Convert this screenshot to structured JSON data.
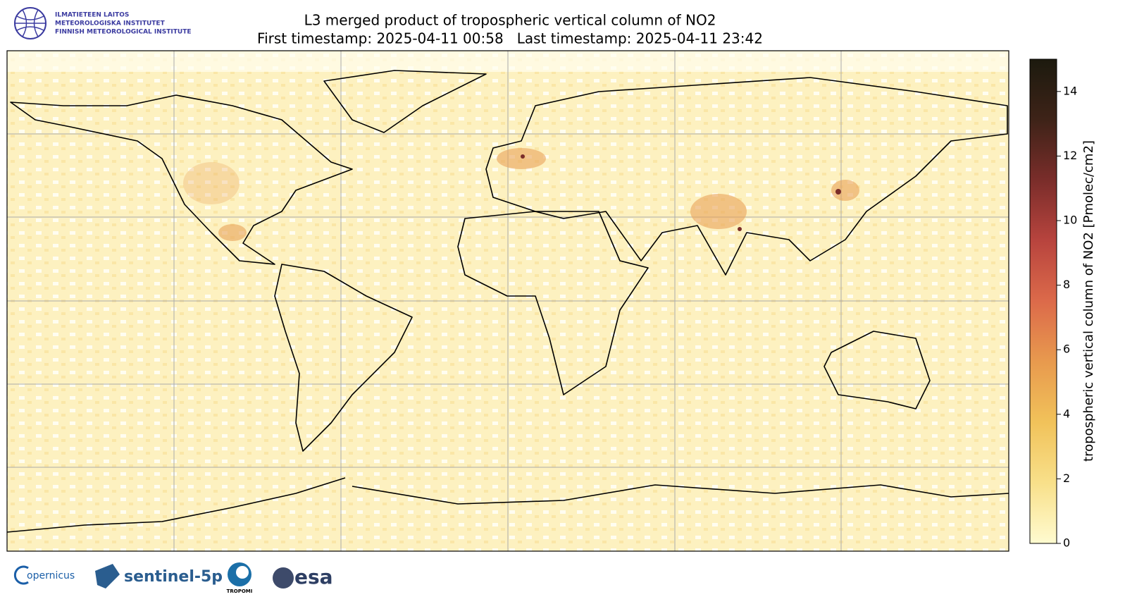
{
  "header": {
    "institute_lines": [
      "ILMATIETEEN LAITOS",
      "METEOROLOGISKA INSTITUTET",
      "FINNISH METEOROLOGICAL INSTITUTE"
    ],
    "title": "L3 merged product of tropospheric vertical column of NO2",
    "subtitle": "First timestamp: 2025-04-11 00:58   Last timestamp: 2025-04-11 23:42"
  },
  "colorbar": {
    "label": "tropospheric vertical column of NO2 [Pmolec/cm2]",
    "lim": [
      0,
      15
    ],
    "ticks": [
      0,
      2,
      4,
      6,
      8,
      10,
      12,
      14
    ],
    "colors": [
      "#fffbd0",
      "#f8e08a",
      "#f1c25a",
      "#e89a4e",
      "#dc6a4a",
      "#b8443e",
      "#7a2d2a",
      "#3e2318",
      "#1c1a0e"
    ]
  },
  "footer": {
    "logos": [
      "opernicus",
      "sentinel-5p",
      "TROPOMI",
      "esa"
    ]
  }
}
